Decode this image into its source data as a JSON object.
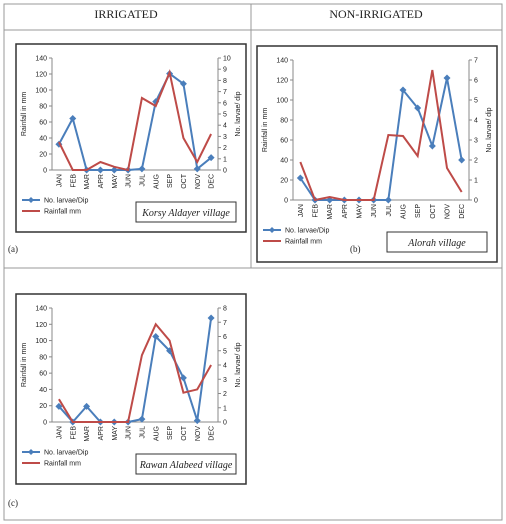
{
  "headers": [
    "IRRIGATED",
    "NON-IRRIGATED"
  ],
  "chart_data": [
    {
      "type": "line",
      "panel_label": "(a)",
      "annotation": "Korsy Aldayer village",
      "y_label": "Rainfall in mm",
      "y2_label": "No. larvae/ dip",
      "categories": [
        "JAN",
        "FEB",
        "MAR",
        "APR",
        "MAY",
        "JUN",
        "JUL",
        "AUG",
        "SEP",
        "OCT",
        "NOV",
        "DEC"
      ],
      "series": [
        {
          "name": "No. larvae/Dip",
          "color": "#4a7ebb",
          "axis": "y2",
          "marker": "diamond",
          "values": [
            2.3,
            4.6,
            0,
            0,
            0,
            0,
            0.1,
            6.1,
            8.6,
            7.7,
            0.1,
            1.1
          ]
        },
        {
          "name": "Rainfall mm",
          "color": "#be4b48",
          "values": [
            35,
            0,
            0,
            10,
            4,
            0,
            90,
            80,
            122,
            40,
            10,
            45
          ]
        }
      ],
      "ylim": [
        0,
        140
      ],
      "yticks": [
        0,
        20,
        40,
        60,
        80,
        100,
        120,
        140
      ],
      "y2lim": [
        0,
        10
      ],
      "y2ticks": [
        0,
        1,
        2,
        3,
        4,
        5,
        6,
        7,
        8,
        9,
        10
      ],
      "legend": "bottom-left"
    },
    {
      "type": "line",
      "panel_label": "(b)",
      "annotation": "Alorah village",
      "y_label": "Rainfall in mm",
      "y2_label": "No. larvae/ dip",
      "categories": [
        "JAN",
        "FEB",
        "MAR",
        "APR",
        "MAY",
        "JUN",
        "JUL",
        "AUG",
        "SEP",
        "OCT",
        "NOV",
        "DEC"
      ],
      "series": [
        {
          "name": "No. larvae/Dip",
          "color": "#4a7ebb",
          "axis": "y2",
          "marker": "diamond",
          "values": [
            1.1,
            0,
            0,
            0,
            0,
            0,
            0,
            5.5,
            4.6,
            2.7,
            6.1,
            2.0
          ]
        },
        {
          "name": "Rainfall mm",
          "color": "#be4b48",
          "values": [
            38,
            0,
            3,
            0,
            0,
            0,
            65,
            64,
            44,
            130,
            32,
            8
          ]
        }
      ],
      "ylim": [
        0,
        140
      ],
      "yticks": [
        0,
        20,
        40,
        60,
        80,
        100,
        120,
        140
      ],
      "y2lim": [
        0,
        7
      ],
      "y2ticks": [
        0,
        1,
        2,
        3,
        4,
        5,
        6,
        7
      ],
      "legend": "bottom-left"
    },
    {
      "type": "line",
      "panel_label": "(c)",
      "annotation": "Rawan Alabeed village",
      "y_label": "Rainfall in mm",
      "y2_label": "No. larvae/ dip",
      "categories": [
        "JAN",
        "FEB",
        "MAR",
        "APR",
        "MAY",
        "JUN",
        "JUL",
        "AUG",
        "SEP",
        "OCT",
        "NOV",
        "DEC"
      ],
      "series": [
        {
          "name": "No. larvae/Dip",
          "color": "#4a7ebb",
          "axis": "y2",
          "marker": "diamond",
          "values": [
            1.1,
            0,
            1.1,
            0,
            0,
            0,
            0.2,
            6.0,
            5.0,
            3.1,
            0.1,
            7.3
          ]
        },
        {
          "name": "Rainfall mm",
          "color": "#be4b48",
          "values": [
            28,
            0,
            0,
            0,
            0,
            0,
            82,
            120,
            100,
            36,
            40,
            70
          ]
        }
      ],
      "ylim": [
        0,
        140
      ],
      "yticks": [
        0,
        20,
        40,
        60,
        80,
        100,
        120,
        140
      ],
      "y2lim": [
        0,
        8
      ],
      "y2ticks": [
        0,
        1,
        2,
        3,
        4,
        5,
        6,
        7,
        8
      ],
      "legend": "bottom-left"
    }
  ]
}
